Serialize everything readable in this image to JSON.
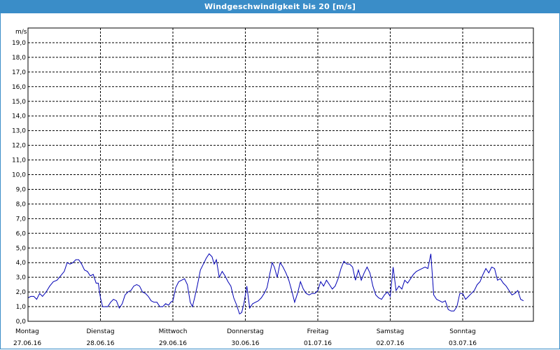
{
  "window": {
    "title": "Windgeschwindigkeit bis 20 [m/s]"
  },
  "colors": {
    "titlebar": "#3a8dc8",
    "series": "#0000b4",
    "grid": "#000000"
  },
  "chart_data": {
    "type": "line",
    "title": "Windgeschwindigkeit bis 20 [m/s]",
    "ylabel": "m/s",
    "ylim": [
      0,
      20
    ],
    "yticks": [
      "0,0",
      "1,0",
      "2,0",
      "3,0",
      "4,0",
      "5,0",
      "6,0",
      "7,0",
      "8,0",
      "9,0",
      "10,0",
      "11,0",
      "12,0",
      "13,0",
      "14,0",
      "15,0",
      "16,0",
      "17,0",
      "18,0",
      "19,0"
    ],
    "grid": true,
    "x_days": [
      {
        "day": "Montag",
        "date": "27.06.16"
      },
      {
        "day": "Dienstag",
        "date": "28.06.16"
      },
      {
        "day": "Mittwoch",
        "date": "29.06.16"
      },
      {
        "day": "Donnerstag",
        "date": "30.06.16"
      },
      {
        "day": "Freitag",
        "date": "01.07.16"
      },
      {
        "day": "Samstag",
        "date": "02.07.16"
      },
      {
        "day": "Sonntag",
        "date": "03.07.16"
      }
    ],
    "series": [
      {
        "points": [
          [
            0.0,
            1.6
          ],
          [
            0.04,
            1.7
          ],
          [
            0.08,
            1.7
          ],
          [
            0.12,
            1.5
          ],
          [
            0.16,
            1.9
          ],
          [
            0.2,
            1.7
          ],
          [
            0.25,
            2.0
          ],
          [
            0.3,
            2.4
          ],
          [
            0.35,
            2.7
          ],
          [
            0.4,
            2.8
          ],
          [
            0.45,
            3.1
          ],
          [
            0.5,
            3.4
          ],
          [
            0.54,
            4.0
          ],
          [
            0.58,
            3.9
          ],
          [
            0.62,
            4.0
          ],
          [
            0.66,
            4.2
          ],
          [
            0.7,
            4.2
          ],
          [
            0.74,
            3.9
          ],
          [
            0.78,
            3.5
          ],
          [
            0.82,
            3.4
          ],
          [
            0.86,
            3.1
          ],
          [
            0.9,
            3.2
          ],
          [
            0.94,
            2.6
          ],
          [
            0.97,
            2.6
          ],
          [
            1.0,
            1.6
          ],
          [
            1.03,
            1.0
          ],
          [
            1.07,
            1.0
          ],
          [
            1.1,
            1.0
          ],
          [
            1.14,
            1.3
          ],
          [
            1.18,
            1.5
          ],
          [
            1.22,
            1.4
          ],
          [
            1.26,
            0.9
          ],
          [
            1.3,
            1.2
          ],
          [
            1.34,
            1.8
          ],
          [
            1.38,
            2.0
          ],
          [
            1.42,
            2.1
          ],
          [
            1.46,
            2.4
          ],
          [
            1.5,
            2.5
          ],
          [
            1.54,
            2.4
          ],
          [
            1.58,
            2.0
          ],
          [
            1.62,
            1.9
          ],
          [
            1.66,
            1.7
          ],
          [
            1.7,
            1.4
          ],
          [
            1.74,
            1.3
          ],
          [
            1.78,
            1.3
          ],
          [
            1.82,
            1.0
          ],
          [
            1.86,
            1.0
          ],
          [
            1.9,
            1.2
          ],
          [
            1.94,
            1.1
          ],
          [
            1.97,
            1.3
          ],
          [
            2.0,
            1.4
          ],
          [
            2.04,
            2.3
          ],
          [
            2.08,
            2.7
          ],
          [
            2.12,
            2.8
          ],
          [
            2.16,
            2.9
          ],
          [
            2.2,
            2.5
          ],
          [
            2.24,
            1.3
          ],
          [
            2.27,
            1.0
          ],
          [
            2.3,
            1.6
          ],
          [
            2.34,
            2.5
          ],
          [
            2.38,
            3.5
          ],
          [
            2.42,
            3.9
          ],
          [
            2.46,
            4.3
          ],
          [
            2.5,
            4.6
          ],
          [
            2.54,
            4.4
          ],
          [
            2.57,
            3.9
          ],
          [
            2.6,
            4.2
          ],
          [
            2.64,
            3.0
          ],
          [
            2.68,
            3.4
          ],
          [
            2.72,
            3.1
          ],
          [
            2.76,
            2.7
          ],
          [
            2.8,
            2.4
          ],
          [
            2.84,
            1.6
          ],
          [
            2.88,
            1.1
          ],
          [
            2.92,
            0.5
          ],
          [
            2.95,
            0.6
          ],
          [
            2.98,
            1.2
          ],
          [
            3.02,
            2.4
          ],
          [
            3.06,
            0.9
          ],
          [
            3.1,
            1.2
          ],
          [
            3.14,
            1.3
          ],
          [
            3.18,
            1.4
          ],
          [
            3.22,
            1.6
          ],
          [
            3.26,
            1.9
          ],
          [
            3.3,
            2.3
          ],
          [
            3.34,
            3.3
          ],
          [
            3.37,
            4.0
          ],
          [
            3.4,
            3.7
          ],
          [
            3.44,
            3.0
          ],
          [
            3.48,
            4.0
          ],
          [
            3.52,
            3.7
          ],
          [
            3.56,
            3.3
          ],
          [
            3.6,
            2.8
          ],
          [
            3.64,
            2.1
          ],
          [
            3.68,
            1.3
          ],
          [
            3.72,
            1.9
          ],
          [
            3.76,
            2.7
          ],
          [
            3.8,
            2.2
          ],
          [
            3.84,
            1.9
          ],
          [
            3.88,
            1.8
          ],
          [
            3.92,
            1.9
          ],
          [
            3.96,
            1.9
          ],
          [
            4.0,
            2.1
          ],
          [
            4.04,
            2.7
          ],
          [
            4.08,
            2.4
          ],
          [
            4.12,
            2.8
          ],
          [
            4.16,
            2.5
          ],
          [
            4.2,
            2.2
          ],
          [
            4.24,
            2.4
          ],
          [
            4.28,
            2.9
          ],
          [
            4.32,
            3.6
          ],
          [
            4.36,
            4.1
          ],
          [
            4.4,
            3.9
          ],
          [
            4.44,
            3.9
          ],
          [
            4.48,
            3.7
          ],
          [
            4.52,
            2.8
          ],
          [
            4.56,
            3.5
          ],
          [
            4.6,
            2.8
          ],
          [
            4.64,
            3.3
          ],
          [
            4.68,
            3.7
          ],
          [
            4.72,
            3.3
          ],
          [
            4.76,
            2.4
          ],
          [
            4.8,
            1.8
          ],
          [
            4.84,
            1.6
          ],
          [
            4.88,
            1.5
          ],
          [
            4.92,
            1.8
          ],
          [
            4.96,
            2.0
          ],
          [
            5.0,
            1.7
          ],
          [
            5.04,
            3.7
          ],
          [
            5.08,
            2.1
          ],
          [
            5.12,
            2.4
          ],
          [
            5.16,
            2.2
          ],
          [
            5.2,
            2.8
          ],
          [
            5.24,
            2.6
          ],
          [
            5.28,
            2.9
          ],
          [
            5.32,
            3.2
          ],
          [
            5.36,
            3.4
          ],
          [
            5.4,
            3.5
          ],
          [
            5.44,
            3.6
          ],
          [
            5.48,
            3.7
          ],
          [
            5.52,
            3.6
          ],
          [
            5.56,
            4.6
          ],
          [
            5.6,
            1.8
          ],
          [
            5.64,
            1.5
          ],
          [
            5.68,
            1.4
          ],
          [
            5.72,
            1.3
          ],
          [
            5.76,
            1.4
          ],
          [
            5.8,
            0.8
          ],
          [
            5.84,
            0.7
          ],
          [
            5.88,
            0.7
          ],
          [
            5.92,
            1.0
          ],
          [
            5.96,
            1.9
          ],
          [
            6.0,
            1.9
          ],
          [
            6.04,
            1.5
          ],
          [
            6.08,
            1.7
          ],
          [
            6.12,
            1.9
          ],
          [
            6.16,
            2.1
          ],
          [
            6.2,
            2.5
          ],
          [
            6.24,
            2.7
          ],
          [
            6.28,
            3.2
          ],
          [
            6.32,
            3.6
          ],
          [
            6.36,
            3.3
          ],
          [
            6.4,
            3.7
          ],
          [
            6.44,
            3.6
          ],
          [
            6.48,
            2.8
          ],
          [
            6.52,
            2.9
          ],
          [
            6.56,
            2.6
          ],
          [
            6.6,
            2.4
          ],
          [
            6.64,
            2.1
          ],
          [
            6.68,
            1.8
          ],
          [
            6.72,
            1.9
          ],
          [
            6.76,
            2.1
          ],
          [
            6.8,
            1.5
          ],
          [
            6.84,
            1.4
          ]
        ]
      }
    ]
  }
}
